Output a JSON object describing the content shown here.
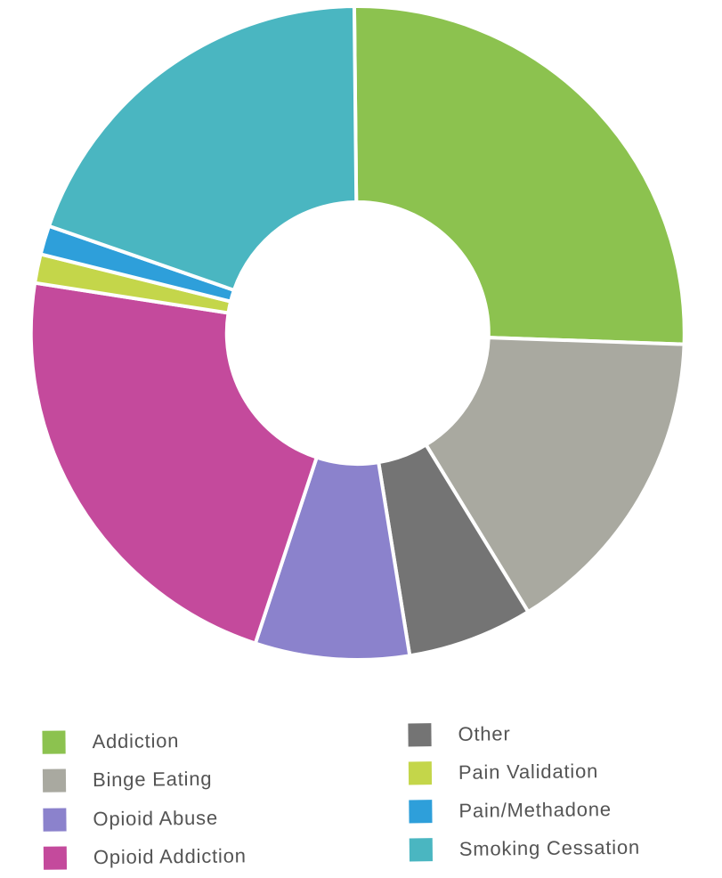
{
  "chart_data": {
    "type": "pie",
    "style": "donut",
    "title": "",
    "grid": false,
    "legend_placement": "bottom",
    "categories": [
      "Addiction",
      "Binge Eating",
      "Other",
      "Opioid Abuse",
      "Opioid Addiction",
      "Pain Validation",
      "Pain/Methadone",
      "Smoking Cessation"
    ],
    "values": [
      27.0,
      16.5,
      6.5,
      8.0,
      23.5,
      1.5,
      1.5,
      20.5
    ],
    "colors": [
      "#8cc24f",
      "#a9a9a0",
      "#747474",
      "#8b82cc",
      "#c44a9c",
      "#c4d64a",
      "#2e9fda",
      "#4ab6c1"
    ],
    "legend": {
      "left": [
        {
          "label": "Addiction",
          "color": "#8cc24f"
        },
        {
          "label": "Binge Eating",
          "color": "#a9a9a0"
        },
        {
          "label": "Opioid Abuse",
          "color": "#8b82cc"
        },
        {
          "label": "Opioid Addiction",
          "color": "#c44a9c"
        }
      ],
      "right": [
        {
          "label": "Other",
          "color": "#747474"
        },
        {
          "label": "Pain Validation",
          "color": "#c4d64a"
        },
        {
          "label": "Pain/Methadone",
          "color": "#2e9fda"
        },
        {
          "label": "Smoking Cessation",
          "color": "#4ab6c1"
        }
      ]
    }
  }
}
